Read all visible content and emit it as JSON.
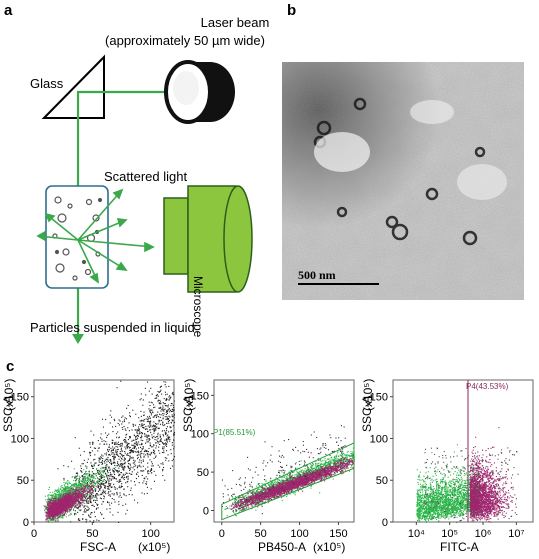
{
  "panels": {
    "a": "a",
    "b": "b",
    "c": "c"
  },
  "panel_a": {
    "laser_line1": "Laser beam",
    "laser_line2": "(approximately 50 µm wide)",
    "glass": "Glass",
    "scattered": "Scattered light",
    "microscope": "Microscope",
    "particles": "Particles suspended in liquid",
    "colors": {
      "green": "#3aa84b",
      "microscope_fill": "#8cc63f",
      "cell_border": "#2e6e8e"
    }
  },
  "panel_b": {
    "scale_bar": "500 nm"
  },
  "panel_c": {
    "chart_data": [
      {
        "type": "scatter",
        "xlabel": "FSC-A",
        "xunit": "(x10⁵)",
        "ylabel": "SSC-A",
        "yunit": "(x10⁵)",
        "xticks": [
          "0",
          "50",
          "100"
        ],
        "yticks": [
          "0",
          "50",
          "100",
          "150"
        ],
        "xlim": [
          0,
          120
        ],
        "ylim": [
          0,
          170
        ],
        "gate": null,
        "populations": [
          {
            "color": "#222222",
            "center": [
              65,
              80
            ]
          },
          {
            "color": "#2db84b",
            "center": [
              30,
              25
            ]
          },
          {
            "color": "#a0256e",
            "center": [
              25,
              18
            ]
          }
        ]
      },
      {
        "type": "scatter",
        "xlabel": "PB450-A",
        "xunit": "(x10⁵)",
        "ylabel": "SSC-A",
        "yunit": "(x10⁵)",
        "xticks": [
          "0",
          "50",
          "100",
          "150"
        ],
        "yticks": [
          "0",
          "50",
          "100",
          "150"
        ],
        "xlim": [
          -10,
          170
        ],
        "ylim": [
          -15,
          170
        ],
        "gate": {
          "name": "P1",
          "percent": "P1(85.51%)"
        },
        "populations": [
          {
            "color": "#2db84b",
            "center": [
              70,
              30
            ]
          },
          {
            "color": "#a0256e",
            "center": [
              85,
              35
            ]
          }
        ]
      },
      {
        "type": "scatter",
        "xlabel": "FITC-A",
        "xscale": "log",
        "ylabel": "SSC-A",
        "yunit": "(x10⁵)",
        "xticks": [
          "10⁴",
          "10⁵",
          "10⁶",
          "10⁷"
        ],
        "yticks": [
          "0",
          "50",
          "100",
          "150"
        ],
        "ylim": [
          0,
          170
        ],
        "gate": {
          "name": "P4",
          "percent": "P4(43.53%)"
        },
        "populations": [
          {
            "color": "#2db84b",
            "center": [
              5.3,
              25
            ]
          },
          {
            "color": "#a0256e",
            "center": [
              6.2,
              28
            ]
          }
        ]
      }
    ]
  }
}
